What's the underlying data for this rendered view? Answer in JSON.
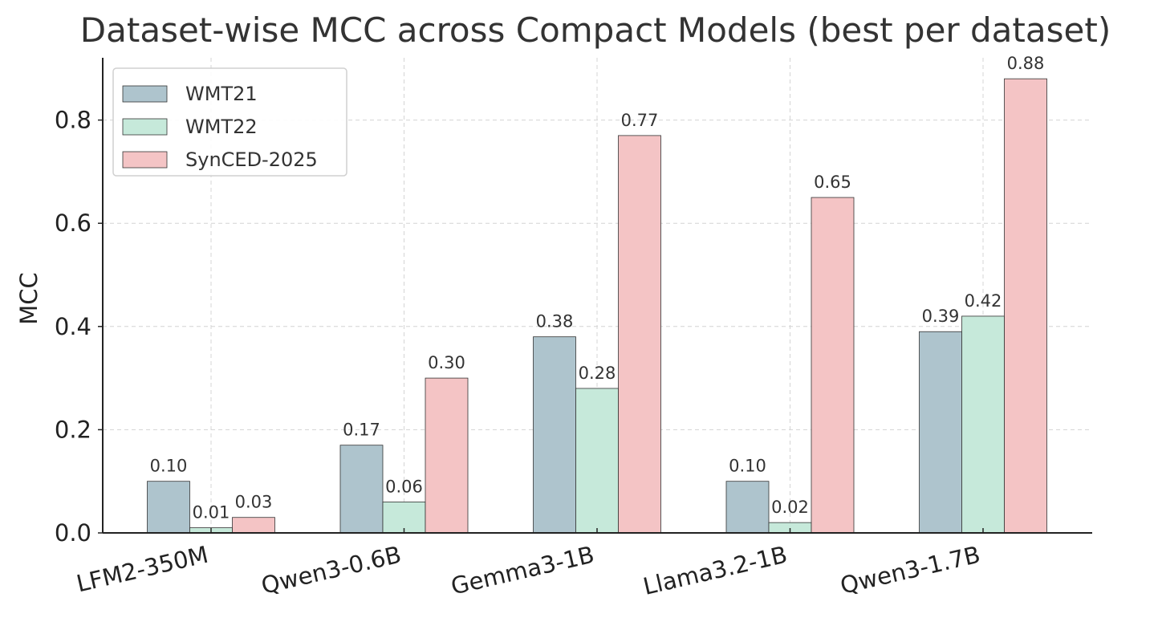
{
  "chart_data": {
    "type": "bar",
    "title": "Dataset-wise MCC across Compact Models (best per dataset)",
    "xlabel": "",
    "ylabel": "MCC",
    "ylim": [
      0,
      0.92
    ],
    "yticks": [
      0.0,
      0.2,
      0.4,
      0.6,
      0.8
    ],
    "ytick_labels": [
      "0.0",
      "0.2",
      "0.4",
      "0.6",
      "0.8"
    ],
    "grid": true,
    "legend_position": "top-left",
    "categories": [
      "LFM2-350M",
      "Qwen3-0.6B",
      "Gemma3-1B",
      "Llama3.2-1B",
      "Qwen3-1.7B"
    ],
    "series": [
      {
        "name": "WMT21",
        "color": "#aec4cd",
        "values": [
          0.1,
          0.17,
          0.38,
          0.1,
          0.39
        ],
        "labels": [
          "0.10",
          "0.17",
          "0.38",
          "0.10",
          "0.39"
        ]
      },
      {
        "name": "WMT22",
        "color": "#c6e9da",
        "values": [
          0.01,
          0.06,
          0.28,
          0.02,
          0.42
        ],
        "labels": [
          "0.01",
          "0.06",
          "0.28",
          "0.02",
          "0.42"
        ]
      },
      {
        "name": "SynCED-2025",
        "color": "#f4c4c5",
        "values": [
          0.03,
          0.3,
          0.77,
          0.65,
          0.88
        ],
        "labels": [
          "0.03",
          "0.30",
          "0.77",
          "0.65",
          "0.88"
        ]
      }
    ]
  }
}
